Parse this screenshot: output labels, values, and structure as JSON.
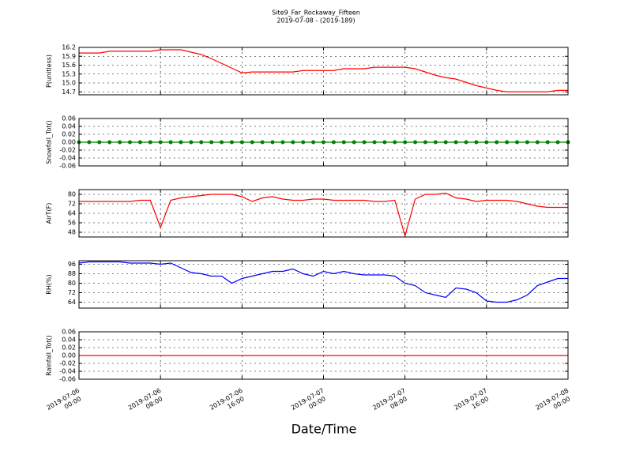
{
  "chart_data": [
    {
      "type": "line",
      "title": "Site9_Far_Rockaway_Fifteen",
      "subtitle": "2019-07-08 - (2019-189)",
      "ylabel": "P(unitless)",
      "x": [
        "2019-07-06 00:00",
        "2019-07-06 01:00",
        "2019-07-06 02:00",
        "2019-07-06 03:00",
        "2019-07-06 04:00",
        "2019-07-06 05:00",
        "2019-07-06 06:00",
        "2019-07-06 07:00",
        "2019-07-06 08:00",
        "2019-07-06 09:00",
        "2019-07-06 10:00",
        "2019-07-06 11:00",
        "2019-07-06 12:00",
        "2019-07-06 13:00",
        "2019-07-06 14:00",
        "2019-07-06 15:00",
        "2019-07-06 16:00",
        "2019-07-06 17:00",
        "2019-07-06 18:00",
        "2019-07-06 19:00",
        "2019-07-06 20:00",
        "2019-07-06 21:00",
        "2019-07-06 22:00",
        "2019-07-06 23:00",
        "2019-07-07 00:00",
        "2019-07-07 01:00",
        "2019-07-07 02:00",
        "2019-07-07 03:00",
        "2019-07-07 04:00",
        "2019-07-07 05:00",
        "2019-07-07 06:00",
        "2019-07-07 07:00",
        "2019-07-07 08:00",
        "2019-07-07 09:00",
        "2019-07-07 10:00",
        "2019-07-07 11:00",
        "2019-07-07 12:00",
        "2019-07-07 13:00",
        "2019-07-07 14:00",
        "2019-07-07 15:00",
        "2019-07-07 16:00",
        "2019-07-07 17:00",
        "2019-07-07 18:00",
        "2019-07-07 19:00",
        "2019-07-07 20:00",
        "2019-07-07 21:00",
        "2019-07-07 22:00",
        "2019-07-07 23:00",
        "2019-07-08 00:00"
      ],
      "series": [
        {
          "color": "#ff0000",
          "values": [
            16.01,
            16.01,
            16.01,
            16.07,
            16.07,
            16.07,
            16.07,
            16.07,
            16.12,
            16.12,
            16.12,
            16.04,
            15.96,
            15.82,
            15.66,
            15.5,
            15.34,
            15.37,
            15.37,
            15.37,
            15.37,
            15.37,
            15.42,
            15.42,
            15.42,
            15.42,
            15.48,
            15.48,
            15.48,
            15.53,
            15.53,
            15.53,
            15.53,
            15.48,
            15.37,
            15.26,
            15.18,
            15.13,
            15.02,
            14.91,
            14.83,
            14.75,
            14.7,
            14.7,
            14.7,
            14.7,
            14.7,
            14.75,
            14.75
          ]
        }
      ],
      "xlim": [
        "2019-07-06 00:00",
        "2019-07-08 00:00"
      ],
      "xticks": [
        "2019-07-06 00:00",
        "2019-07-06 08:00",
        "2019-07-06 16:00",
        "2019-07-07 00:00",
        "2019-07-07 08:00",
        "2019-07-07 16:00",
        "2019-07-08 00:00"
      ],
      "ylim": [
        14.6,
        16.2
      ],
      "yticks": [
        {
          "value": 14.7,
          "label": "14.7"
        },
        {
          "value": 15,
          "label": "15.0"
        },
        {
          "value": 15.3,
          "label": "15.3"
        },
        {
          "value": 15.6,
          "label": "15.6"
        },
        {
          "value": 15.9,
          "label": "15.9"
        },
        {
          "value": 16.2,
          "label": "16.2"
        }
      ],
      "grid": true
    },
    {
      "type": "line",
      "ylabel": "Snowfall_Tot()",
      "marker": true,
      "x": [
        "2019-07-06 00:00",
        "2019-07-06 01:00",
        "2019-07-06 02:00",
        "2019-07-06 03:00",
        "2019-07-06 04:00",
        "2019-07-06 05:00",
        "2019-07-06 06:00",
        "2019-07-06 07:00",
        "2019-07-06 08:00",
        "2019-07-06 09:00",
        "2019-07-06 10:00",
        "2019-07-06 11:00",
        "2019-07-06 12:00",
        "2019-07-06 13:00",
        "2019-07-06 14:00",
        "2019-07-06 15:00",
        "2019-07-06 16:00",
        "2019-07-06 17:00",
        "2019-07-06 18:00",
        "2019-07-06 19:00",
        "2019-07-06 20:00",
        "2019-07-06 21:00",
        "2019-07-06 22:00",
        "2019-07-06 23:00",
        "2019-07-07 00:00",
        "2019-07-07 01:00",
        "2019-07-07 02:00",
        "2019-07-07 03:00",
        "2019-07-07 04:00",
        "2019-07-07 05:00",
        "2019-07-07 06:00",
        "2019-07-07 07:00",
        "2019-07-07 08:00",
        "2019-07-07 09:00",
        "2019-07-07 10:00",
        "2019-07-07 11:00",
        "2019-07-07 12:00",
        "2019-07-07 13:00",
        "2019-07-07 14:00",
        "2019-07-07 15:00",
        "2019-07-07 16:00",
        "2019-07-07 17:00",
        "2019-07-07 18:00",
        "2019-07-07 19:00",
        "2019-07-07 20:00",
        "2019-07-07 21:00",
        "2019-07-07 22:00",
        "2019-07-07 23:00",
        "2019-07-08 00:00"
      ],
      "series": [
        {
          "color": "#008000",
          "values": [
            0,
            0,
            0,
            0,
            0,
            0,
            0,
            0,
            0,
            0,
            0,
            0,
            0,
            0,
            0,
            0,
            0,
            0,
            0,
            0,
            0,
            0,
            0,
            0,
            0,
            0,
            0,
            0,
            0,
            0,
            0,
            0,
            0,
            0,
            0,
            0,
            0,
            0,
            0,
            0,
            0,
            0,
            0,
            0,
            0,
            0,
            0,
            0,
            0
          ]
        }
      ],
      "xlim": [
        "2019-07-06 00:00",
        "2019-07-08 00:00"
      ],
      "xticks": [
        "2019-07-06 00:00",
        "2019-07-06 08:00",
        "2019-07-06 16:00",
        "2019-07-07 00:00",
        "2019-07-07 08:00",
        "2019-07-07 16:00",
        "2019-07-08 00:00"
      ],
      "ylim": [
        -0.06,
        0.06
      ],
      "yticks": [
        -0.06,
        -0.04,
        -0.02,
        {
          "value": 0,
          "label": "0.00"
        },
        0.02,
        0.04,
        0.06
      ],
      "grid": true
    },
    {
      "type": "line",
      "ylabel": "AirT(F)",
      "x": [
        "2019-07-06 00:00",
        "2019-07-06 01:00",
        "2019-07-06 02:00",
        "2019-07-06 03:00",
        "2019-07-06 04:00",
        "2019-07-06 05:00",
        "2019-07-06 06:00",
        "2019-07-06 07:00",
        "2019-07-06 08:00",
        "2019-07-06 09:00",
        "2019-07-06 10:00",
        "2019-07-06 11:00",
        "2019-07-06 12:00",
        "2019-07-06 13:00",
        "2019-07-06 14:00",
        "2019-07-06 15:00",
        "2019-07-06 16:00",
        "2019-07-06 17:00",
        "2019-07-06 18:00",
        "2019-07-06 19:00",
        "2019-07-06 20:00",
        "2019-07-06 21:00",
        "2019-07-06 22:00",
        "2019-07-06 23:00",
        "2019-07-07 00:00",
        "2019-07-07 01:00",
        "2019-07-07 02:00",
        "2019-07-07 03:00",
        "2019-07-07 04:00",
        "2019-07-07 05:00",
        "2019-07-07 06:00",
        "2019-07-07 07:00",
        "2019-07-07 08:00",
        "2019-07-07 09:00",
        "2019-07-07 10:00",
        "2019-07-07 11:00",
        "2019-07-07 12:00",
        "2019-07-07 13:00",
        "2019-07-07 14:00",
        "2019-07-07 15:00",
        "2019-07-07 16:00",
        "2019-07-07 17:00",
        "2019-07-07 18:00",
        "2019-07-07 19:00",
        "2019-07-07 20:00",
        "2019-07-07 21:00",
        "2019-07-07 22:00",
        "2019-07-07 23:00",
        "2019-07-08 00:00"
      ],
      "series": [
        {
          "color": "#ff0000",
          "values": [
            74,
            74,
            74,
            74,
            74,
            74,
            75,
            75,
            52,
            75,
            77,
            78,
            79,
            80,
            80,
            80,
            78,
            74,
            77,
            78,
            76,
            75,
            75,
            76,
            76,
            75,
            75,
            75,
            75,
            74,
            74,
            75,
            45,
            76,
            80,
            80,
            81,
            77,
            76,
            74,
            75,
            75,
            75,
            74,
            72,
            70,
            69,
            69,
            69
          ]
        }
      ],
      "xlim": [
        "2019-07-06 00:00",
        "2019-07-08 00:00"
      ],
      "xticks": [
        "2019-07-06 00:00",
        "2019-07-06 08:00",
        "2019-07-06 16:00",
        "2019-07-07 00:00",
        "2019-07-07 08:00",
        "2019-07-07 16:00",
        "2019-07-08 00:00"
      ],
      "ylim": [
        44,
        84
      ],
      "yticks": [
        48,
        56,
        64,
        72,
        80
      ],
      "grid": true
    },
    {
      "type": "line",
      "ylabel": "RH(%)",
      "x": [
        "2019-07-06 00:00",
        "2019-07-06 01:00",
        "2019-07-06 02:00",
        "2019-07-06 03:00",
        "2019-07-06 04:00",
        "2019-07-06 05:00",
        "2019-07-06 06:00",
        "2019-07-06 07:00",
        "2019-07-06 08:00",
        "2019-07-06 09:00",
        "2019-07-06 10:00",
        "2019-07-06 11:00",
        "2019-07-06 12:00",
        "2019-07-06 13:00",
        "2019-07-06 14:00",
        "2019-07-06 15:00",
        "2019-07-06 16:00",
        "2019-07-06 17:00",
        "2019-07-06 18:00",
        "2019-07-06 19:00",
        "2019-07-06 20:00",
        "2019-07-06 21:00",
        "2019-07-06 22:00",
        "2019-07-06 23:00",
        "2019-07-07 00:00",
        "2019-07-07 01:00",
        "2019-07-07 02:00",
        "2019-07-07 03:00",
        "2019-07-07 04:00",
        "2019-07-07 05:00",
        "2019-07-07 06:00",
        "2019-07-07 07:00",
        "2019-07-07 08:00",
        "2019-07-07 09:00",
        "2019-07-07 10:00",
        "2019-07-07 11:00",
        "2019-07-07 12:00",
        "2019-07-07 13:00",
        "2019-07-07 14:00",
        "2019-07-07 15:00",
        "2019-07-07 16:00",
        "2019-07-07 17:00",
        "2019-07-07 18:00",
        "2019-07-07 19:00",
        "2019-07-07 20:00",
        "2019-07-07 21:00",
        "2019-07-07 22:00",
        "2019-07-07 23:00",
        "2019-07-08 00:00"
      ],
      "series": [
        {
          "color": "#0000ff",
          "values": [
            97,
            98,
            98,
            98,
            98,
            97,
            97,
            97,
            96,
            97,
            93,
            89,
            88,
            86,
            86,
            80,
            84,
            86,
            88,
            90,
            90,
            92,
            88,
            86,
            90,
            88,
            90,
            88,
            87,
            87,
            87,
            86,
            80,
            78,
            72,
            70,
            68,
            76,
            75,
            72,
            65,
            64,
            64,
            66,
            70,
            78,
            81,
            84,
            84
          ]
        }
      ],
      "xlim": [
        "2019-07-06 00:00",
        "2019-07-08 00:00"
      ],
      "xticks": [
        "2019-07-06 00:00",
        "2019-07-06 08:00",
        "2019-07-06 16:00",
        "2019-07-07 00:00",
        "2019-07-07 08:00",
        "2019-07-07 16:00",
        "2019-07-08 00:00"
      ],
      "ylim": [
        59,
        99
      ],
      "yticks": [
        64,
        72,
        80,
        88,
        96
      ],
      "grid": true
    },
    {
      "type": "line",
      "ylabel": "Rainfall_Tot()",
      "xlabel": "Date/Time",
      "x": [
        "2019-07-06 00:00",
        "2019-07-06 01:00",
        "2019-07-06 02:00",
        "2019-07-06 03:00",
        "2019-07-06 04:00",
        "2019-07-06 05:00",
        "2019-07-06 06:00",
        "2019-07-06 07:00",
        "2019-07-06 08:00",
        "2019-07-06 09:00",
        "2019-07-06 10:00",
        "2019-07-06 11:00",
        "2019-07-06 12:00",
        "2019-07-06 13:00",
        "2019-07-06 14:00",
        "2019-07-06 15:00",
        "2019-07-06 16:00",
        "2019-07-06 17:00",
        "2019-07-06 18:00",
        "2019-07-06 19:00",
        "2019-07-06 20:00",
        "2019-07-06 21:00",
        "2019-07-06 22:00",
        "2019-07-06 23:00",
        "2019-07-07 00:00",
        "2019-07-07 01:00",
        "2019-07-07 02:00",
        "2019-07-07 03:00",
        "2019-07-07 04:00",
        "2019-07-07 05:00",
        "2019-07-07 06:00",
        "2019-07-07 07:00",
        "2019-07-07 08:00",
        "2019-07-07 09:00",
        "2019-07-07 10:00",
        "2019-07-07 11:00",
        "2019-07-07 12:00",
        "2019-07-07 13:00",
        "2019-07-07 14:00",
        "2019-07-07 15:00",
        "2019-07-07 16:00",
        "2019-07-07 17:00",
        "2019-07-07 18:00",
        "2019-07-07 19:00",
        "2019-07-07 20:00",
        "2019-07-07 21:00",
        "2019-07-07 22:00",
        "2019-07-07 23:00",
        "2019-07-08 00:00"
      ],
      "series": [
        {
          "color": "#ff0000",
          "values": [
            0,
            0,
            0,
            0,
            0,
            0,
            0,
            0,
            0,
            0,
            0,
            0,
            0,
            0,
            0,
            0,
            0,
            0,
            0,
            0,
            0,
            0,
            0,
            0,
            0,
            0,
            0,
            0,
            0,
            0,
            0,
            0,
            0,
            0,
            0,
            0,
            0,
            0,
            0,
            0,
            0,
            0,
            0,
            0,
            0,
            0,
            0,
            0,
            0
          ]
        }
      ],
      "xlim": [
        "2019-07-06 00:00",
        "2019-07-08 00:00"
      ],
      "xticks": [
        "2019-07-06 00:00",
        "2019-07-06 08:00",
        "2019-07-06 16:00",
        "2019-07-07 00:00",
        "2019-07-07 08:00",
        "2019-07-07 16:00",
        "2019-07-08 00:00"
      ],
      "show_xtick_labels": true,
      "ylim": [
        -0.06,
        0.06
      ],
      "yticks": [
        -0.06,
        -0.04,
        -0.02,
        {
          "value": 0,
          "label": "0.00"
        },
        0.02,
        0.04,
        0.06
      ],
      "grid": true
    }
  ]
}
